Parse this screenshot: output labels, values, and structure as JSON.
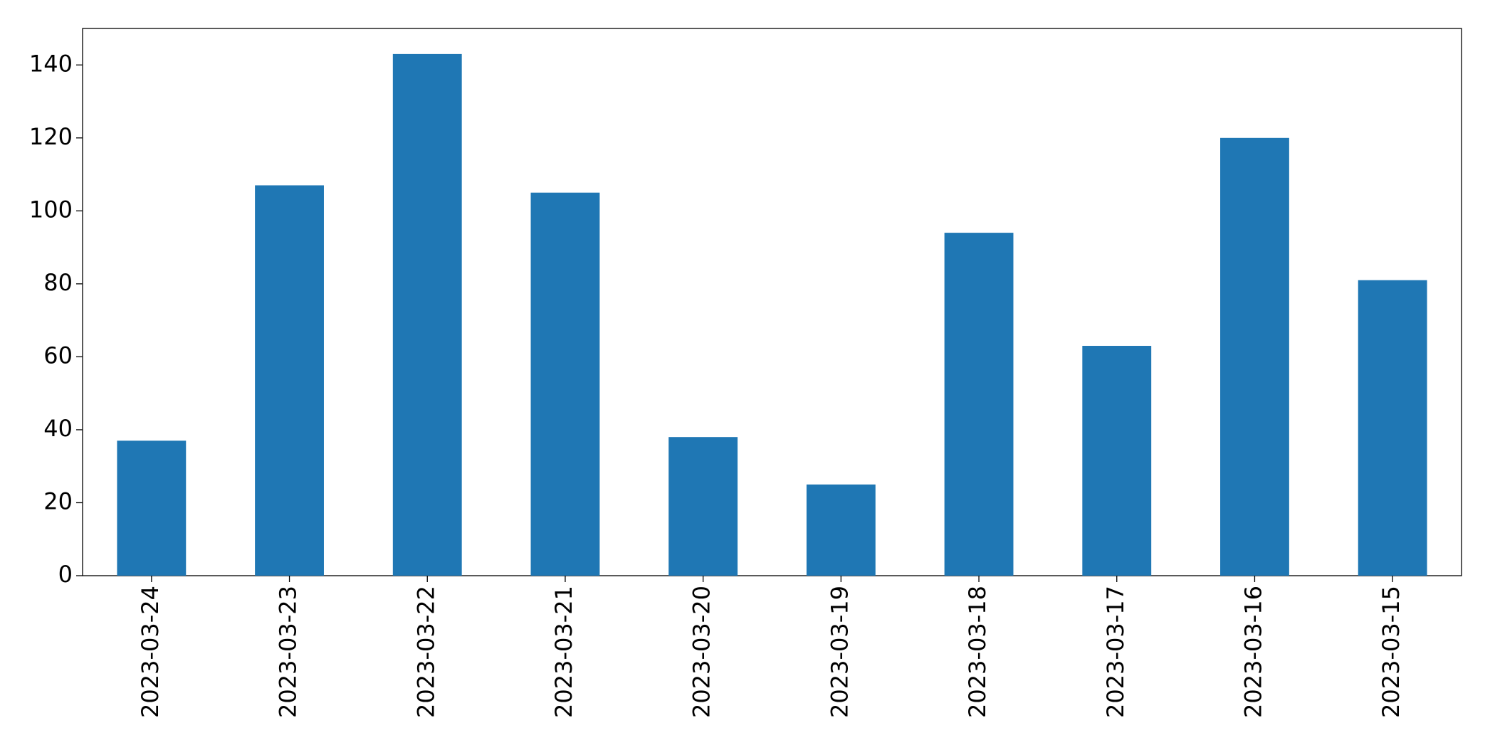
{
  "chart_data": {
    "type": "bar",
    "categories": [
      "2023-03-24",
      "2023-03-23",
      "2023-03-22",
      "2023-03-21",
      "2023-03-20",
      "2023-03-19",
      "2023-03-18",
      "2023-03-17",
      "2023-03-16",
      "2023-03-15"
    ],
    "values": [
      37,
      107,
      143,
      105,
      38,
      25,
      94,
      63,
      120,
      81
    ],
    "color": "#1f77b4",
    "ylim": [
      0,
      150
    ],
    "yticks": [
      0,
      20,
      40,
      60,
      80,
      100,
      120,
      140
    ]
  }
}
